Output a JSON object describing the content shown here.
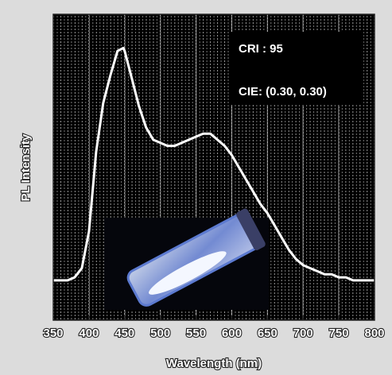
{
  "chart_data": {
    "type": "line",
    "x_label": "Wavelength (nm)",
    "y_label": "PL Intensity",
    "annotations": [
      "CRI : 95",
      "CIE: (0.30, 0.30)"
    ],
    "x": [
      350,
      360,
      370,
      380,
      390,
      400,
      410,
      420,
      430,
      440,
      448,
      450,
      460,
      470,
      480,
      490,
      500,
      510,
      520,
      530,
      540,
      550,
      560,
      570,
      580,
      590,
      600,
      610,
      620,
      630,
      640,
      650,
      660,
      670,
      680,
      690,
      700,
      710,
      720,
      730,
      740,
      750,
      760,
      770,
      780,
      790,
      800
    ],
    "values": [
      0.13,
      0.13,
      0.13,
      0.14,
      0.17,
      0.29,
      0.55,
      0.71,
      0.8,
      0.88,
      0.89,
      0.88,
      0.79,
      0.7,
      0.63,
      0.59,
      0.58,
      0.57,
      0.57,
      0.58,
      0.59,
      0.6,
      0.61,
      0.61,
      0.59,
      0.57,
      0.54,
      0.5,
      0.46,
      0.42,
      0.38,
      0.35,
      0.31,
      0.27,
      0.23,
      0.2,
      0.18,
      0.17,
      0.16,
      0.15,
      0.15,
      0.14,
      0.14,
      0.13,
      0.13,
      0.13,
      0.13
    ],
    "color": "#ffffff",
    "xlim": [
      350,
      800
    ],
    "xticks": [
      350,
      400,
      450,
      500,
      550,
      600,
      650,
      700,
      750,
      800
    ],
    "ylim": [
      0,
      1
    ],
    "grid": true
  }
}
